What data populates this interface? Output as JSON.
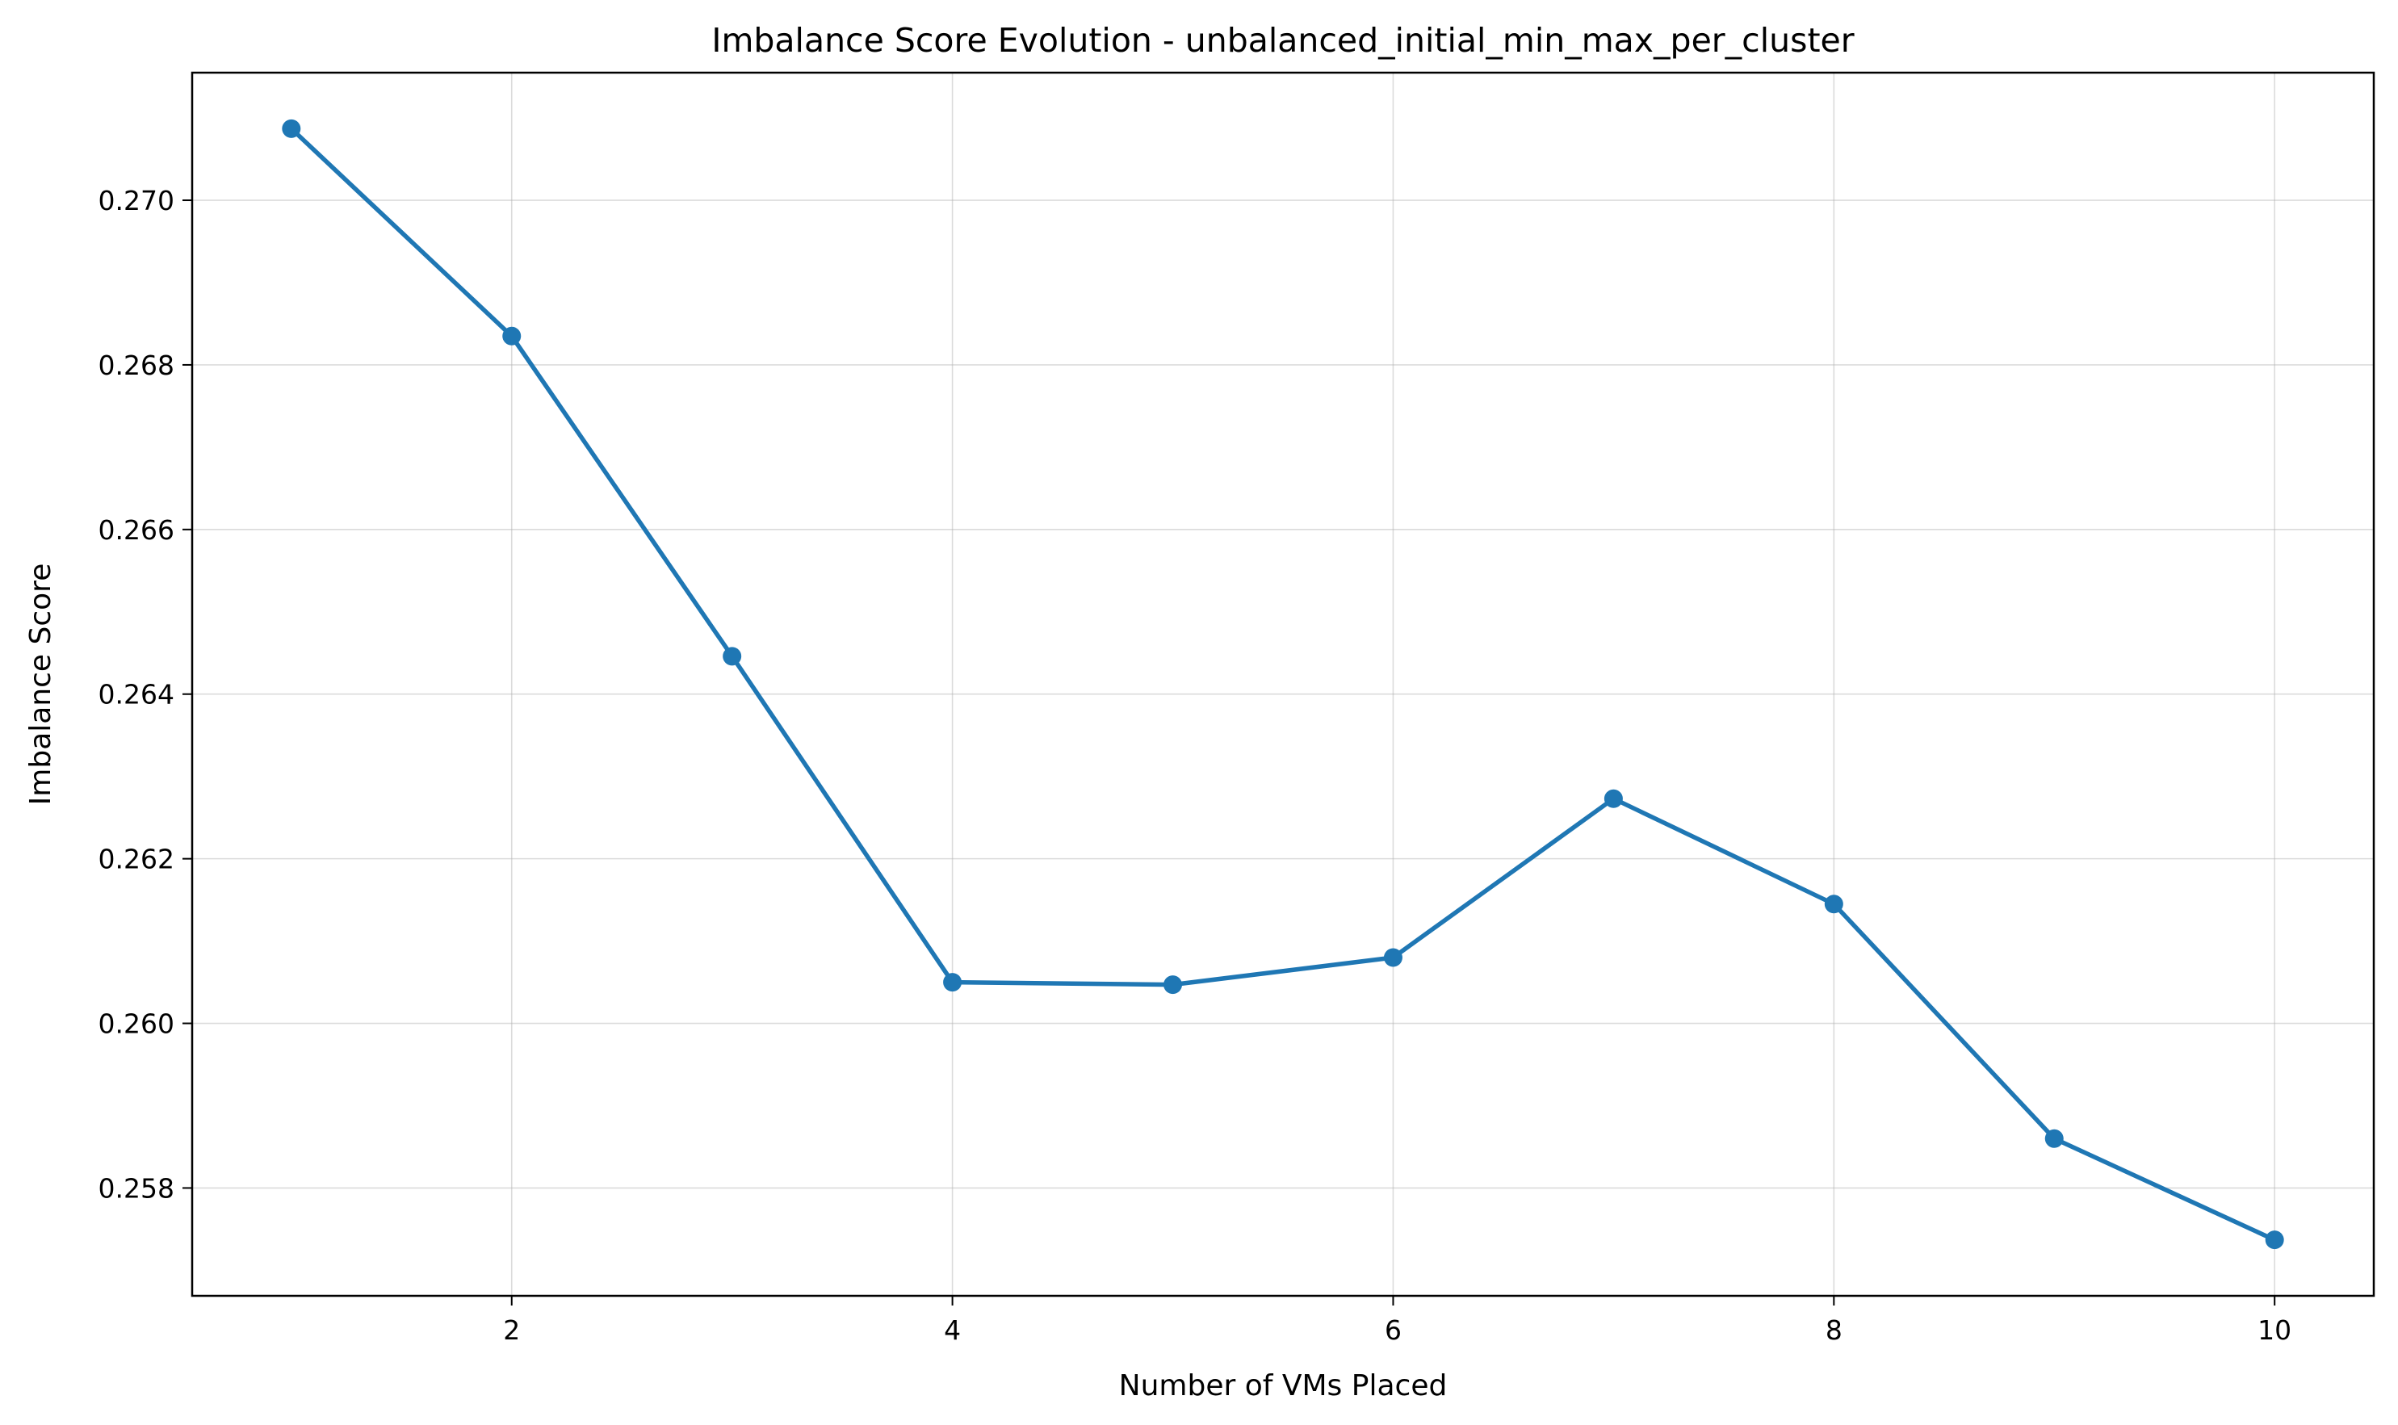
{
  "chart_data": {
    "type": "line",
    "title": "Imbalance Score Evolution - unbalanced_initial_min_max_per_cluster",
    "xlabel": "Number of VMs Placed",
    "ylabel": "Imbalance Score",
    "x": [
      1,
      2,
      3,
      4,
      5,
      6,
      7,
      8,
      9,
      10
    ],
    "series": [
      {
        "values": [
          0.27087,
          0.26835,
          0.26446,
          0.2605,
          0.26047,
          0.2608,
          0.26273,
          0.26145,
          0.2586,
          0.25737
        ],
        "color": "#1f77b4",
        "marker": "circle"
      }
    ],
    "xlim": [
      0.55,
      10.45
    ],
    "ylim": [
      0.25669,
      0.27155
    ],
    "xticks": [
      2,
      4,
      6,
      8,
      10
    ],
    "xtick_labels": [
      "2",
      "4",
      "6",
      "8",
      "10"
    ],
    "yticks": [
      0.258,
      0.26,
      0.262,
      0.264,
      0.266,
      0.268,
      0.27
    ],
    "ytick_labels": [
      "0.258",
      "0.260",
      "0.262",
      "0.264",
      "0.266",
      "0.268",
      "0.270"
    ],
    "grid": true,
    "legend": "none"
  }
}
